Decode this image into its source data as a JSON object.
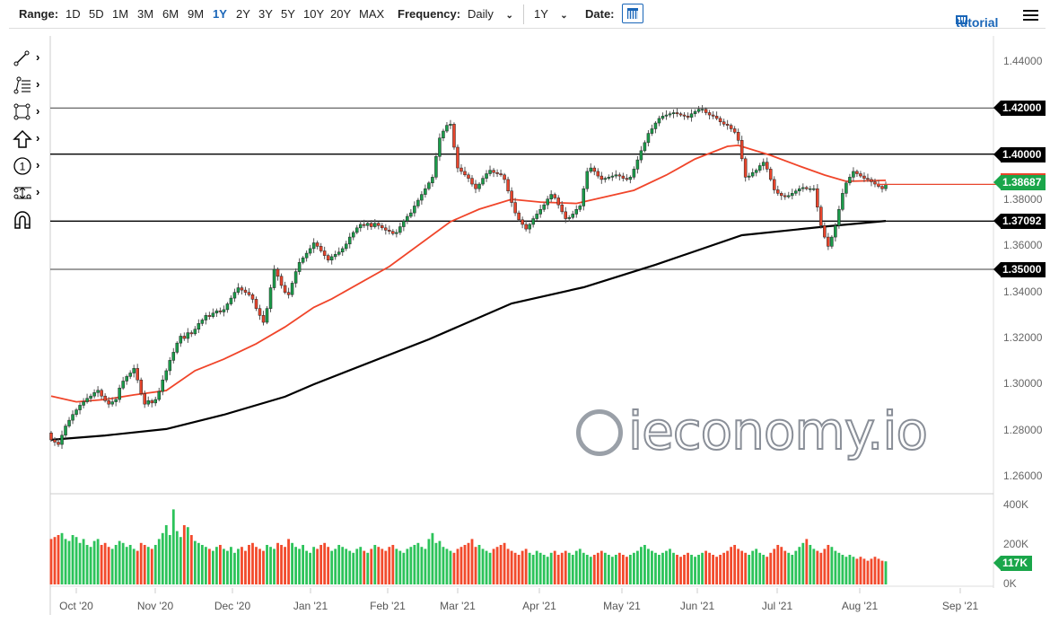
{
  "toolbar": {
    "range_label": "Range:",
    "ranges": [
      "1D",
      "5D",
      "1M",
      "3M",
      "6M",
      "9M",
      "1Y",
      "2Y",
      "3Y",
      "5Y",
      "10Y",
      "20Y",
      "MAX"
    ],
    "active_range": "1Y",
    "frequency_label": "Frequency:",
    "frequency_value": "Daily",
    "period_value": "1Y",
    "date_label": "Date:",
    "tutorial_label": "tutorial",
    "accent_color": "#1a66b8"
  },
  "tools": [
    "line-tool-icon",
    "fibonacci-tool-icon",
    "rectangle-tool-icon",
    "arrow-up-icon",
    "number-marker-icon",
    "measure-tool-icon",
    "magnet-icon"
  ],
  "watermark": "ieconomy.io",
  "chart_data": {
    "type": "candlestick",
    "y_ticks": [
      "1.44000",
      "1.38000",
      "1.36000",
      "1.34000",
      "1.32000",
      "1.30000",
      "1.28000",
      "1.26000"
    ],
    "ylim": [
      1.255,
      1.45
    ],
    "x_ticks": [
      "Oct '20",
      "Nov '20",
      "Dec '20",
      "Jan '21",
      "Feb '21",
      "Mar '21",
      "Apr '21",
      "May '21",
      "Jun '21",
      "Jul '21",
      "Aug '21",
      "Sep '21"
    ],
    "volume_ticks": [
      "400K",
      "200K",
      "0K"
    ],
    "levels": [
      {
        "label": "1.42000",
        "value": 1.42,
        "color": "#666666"
      },
      {
        "label": "1.40000",
        "value": 1.4,
        "color": "#000000"
      },
      {
        "label": "1.37092",
        "value": 1.37092,
        "color": "#000000"
      },
      {
        "label": "1.35000",
        "value": 1.35,
        "color": "#666666"
      }
    ],
    "last_price": {
      "label": "1.38687",
      "value": 1.38687
    },
    "last_volume": "117K",
    "colors": {
      "up": "#1a9c4a",
      "down": "#e8452c",
      "ma_short": "#f0452a",
      "ma_long": "#000000",
      "vol_up": "#2cc35a",
      "vol_down": "#f24a2c"
    },
    "close": [
      1.276,
      1.275,
      1.274,
      1.278,
      1.282,
      1.2845,
      1.287,
      1.289,
      1.291,
      1.2925,
      1.294,
      1.295,
      1.2965,
      1.2975,
      1.295,
      1.293,
      1.2915,
      1.2925,
      1.2935,
      1.2985,
      1.3015,
      1.3035,
      1.305,
      1.307,
      1.302,
      1.296,
      1.2915,
      1.293,
      1.292,
      1.2935,
      1.297,
      1.302,
      1.306,
      1.3105,
      1.314,
      1.318,
      1.321,
      1.32,
      1.3225,
      1.322,
      1.324,
      1.3265,
      1.328,
      1.33,
      1.3295,
      1.331,
      1.332,
      1.3315,
      1.3325,
      1.335,
      1.3375,
      1.34,
      1.342,
      1.341,
      1.34,
      1.339,
      1.337,
      1.333,
      1.33,
      1.327,
      1.333,
      1.342,
      1.35,
      1.347,
      1.343,
      1.34,
      1.339,
      1.344,
      1.349,
      1.353,
      1.355,
      1.357,
      1.359,
      1.3615,
      1.36,
      1.358,
      1.356,
      1.354,
      1.3555,
      1.3565,
      1.3575,
      1.359,
      1.361,
      1.364,
      1.366,
      1.368,
      1.3695,
      1.369,
      1.37,
      1.3685,
      1.37,
      1.369,
      1.368,
      1.367,
      1.3665,
      1.3655,
      1.366,
      1.3685,
      1.371,
      1.373,
      1.3745,
      1.3775,
      1.38,
      1.3825,
      1.385,
      1.3875,
      1.39,
      1.399,
      1.407,
      1.41,
      1.4125,
      1.413,
      1.403,
      1.394,
      1.3925,
      1.391,
      1.3895,
      1.387,
      1.385,
      1.387,
      1.3895,
      1.3915,
      1.393,
      1.392,
      1.3915,
      1.391,
      1.389,
      1.384,
      1.379,
      1.3745,
      1.3715,
      1.3695,
      1.3675,
      1.3695,
      1.372,
      1.374,
      1.376,
      1.378,
      1.3805,
      1.3825,
      1.381,
      1.378,
      1.375,
      1.372,
      1.3725,
      1.374,
      1.376,
      1.3775,
      1.385,
      1.3925,
      1.394,
      1.3925,
      1.3905,
      1.389,
      1.3895,
      1.39,
      1.3905,
      1.391,
      1.3905,
      1.3895,
      1.389,
      1.39,
      1.3935,
      1.3975,
      1.4015,
      1.405,
      1.409,
      1.411,
      1.4135,
      1.4155,
      1.4165,
      1.417,
      1.4175,
      1.418,
      1.4175,
      1.417,
      1.4165,
      1.416,
      1.4175,
      1.4185,
      1.4195,
      1.4195,
      1.418,
      1.417,
      1.4165,
      1.4155,
      1.414,
      1.413,
      1.4125,
      1.411,
      1.4095,
      1.406,
      1.398,
      1.39,
      1.3905,
      1.392,
      1.393,
      1.395,
      1.3965,
      1.3935,
      1.389,
      1.3845,
      1.383,
      1.382,
      1.3815,
      1.382,
      1.383,
      1.384,
      1.385,
      1.3855,
      1.385,
      1.385,
      1.385,
      1.377,
      1.369,
      1.364,
      1.36,
      1.364,
      1.369,
      1.376,
      1.383,
      1.3875,
      1.39,
      1.3925,
      1.3915,
      1.3905,
      1.3895,
      1.389,
      1.388,
      1.387,
      1.386,
      1.385,
      1.3869
    ],
    "volume_k": [
      230,
      240,
      250,
      260,
      230,
      220,
      250,
      240,
      210,
      230,
      200,
      190,
      220,
      230,
      200,
      210,
      190,
      180,
      200,
      220,
      210,
      190,
      200,
      180,
      170,
      210,
      200,
      190,
      180,
      200,
      230,
      260,
      300,
      250,
      380,
      270,
      240,
      300,
      290,
      250,
      220,
      210,
      200,
      190,
      180,
      170,
      190,
      200,
      180,
      170,
      190,
      160,
      180,
      190,
      170,
      200,
      210,
      190,
      180,
      170,
      200,
      190,
      180,
      210,
      200,
      190,
      230,
      210,
      190,
      180,
      200,
      170,
      160,
      190,
      180,
      200,
      210,
      190,
      170,
      180,
      200,
      190,
      180,
      170,
      160,
      180,
      190,
      170,
      160,
      180,
      200,
      190,
      180,
      170,
      190,
      200,
      180,
      170,
      160,
      180,
      190,
      200,
      210,
      190,
      180,
      230,
      260,
      210,
      220,
      190,
      180,
      170,
      160,
      180,
      190,
      200,
      210,
      230,
      190,
      200,
      180,
      170,
      160,
      180,
      190,
      200,
      210,
      180,
      170,
      160,
      150,
      170,
      180,
      160,
      150,
      170,
      160,
      150,
      140,
      160,
      170,
      150,
      160,
      170,
      160,
      150,
      170,
      180,
      160,
      150,
      140,
      150,
      160,
      170,
      160,
      150,
      140,
      150,
      160,
      150,
      140,
      150,
      160,
      170,
      190,
      200,
      180,
      170,
      160,
      150,
      160,
      170,
      180,
      160,
      150,
      140,
      150,
      160,
      150,
      140,
      150,
      160,
      170,
      160,
      150,
      140,
      150,
      160,
      170,
      190,
      200,
      180,
      170,
      160,
      150,
      170,
      180,
      160,
      150,
      140,
      160,
      180,
      200,
      190,
      170,
      160,
      150,
      170,
      190,
      210,
      230,
      200,
      180,
      170,
      160,
      180,
      200,
      190,
      170,
      160,
      150,
      140,
      150,
      140,
      130,
      140,
      130,
      120,
      130,
      140,
      130,
      120,
      117
    ],
    "ma_short": [
      [
        0,
        1.295
      ],
      [
        7,
        1.2925
      ],
      [
        15,
        1.2935
      ],
      [
        23,
        1.2955
      ],
      [
        32,
        1.2974
      ],
      [
        40,
        1.306
      ],
      [
        48,
        1.311
      ],
      [
        57,
        1.3177
      ],
      [
        65,
        1.325
      ],
      [
        73,
        1.3335
      ],
      [
        78,
        1.3372
      ],
      [
        94,
        1.3512
      ],
      [
        111,
        1.3707
      ],
      [
        119,
        1.3761
      ],
      [
        128,
        1.3804
      ],
      [
        136,
        1.3792
      ],
      [
        146,
        1.3786
      ],
      [
        162,
        1.3843
      ],
      [
        171,
        1.3909
      ],
      [
        179,
        1.3979
      ],
      [
        188,
        1.4034
      ],
      [
        191,
        1.4038
      ],
      [
        200,
        1.3995
      ],
      [
        208,
        1.3948
      ],
      [
        215,
        1.3909
      ],
      [
        221,
        1.3882
      ],
      [
        232,
        1.3886
      ]
    ],
    "ma_long": [
      [
        0,
        1.276
      ],
      [
        15,
        1.2779
      ],
      [
        32,
        1.2807
      ],
      [
        48,
        1.2869
      ],
      [
        65,
        1.2947
      ],
      [
        73,
        1.3001
      ],
      [
        105,
        1.3196
      ],
      [
        128,
        1.3352
      ],
      [
        148,
        1.3422
      ],
      [
        168,
        1.352
      ],
      [
        192,
        1.3648
      ],
      [
        216,
        1.3687
      ],
      [
        232,
        1.371
      ]
    ]
  }
}
